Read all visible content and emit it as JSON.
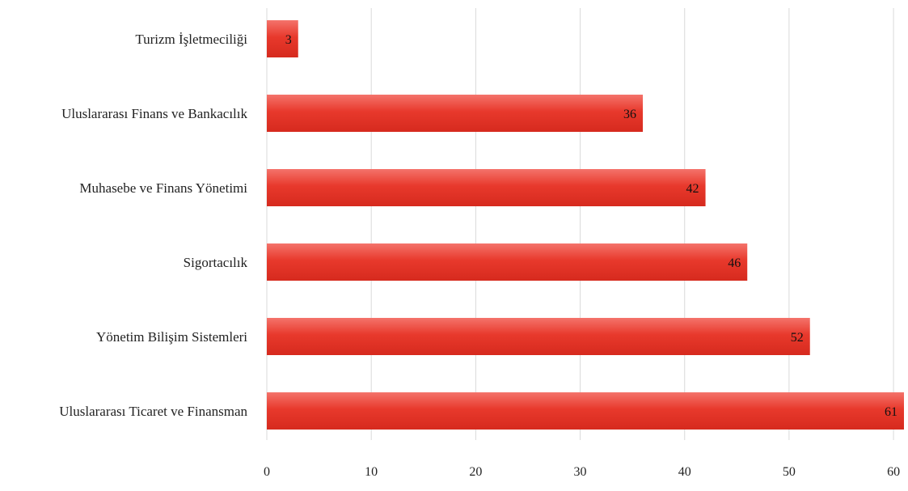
{
  "chart_data": {
    "type": "bar",
    "orientation": "horizontal",
    "categories": [
      "Turizm İşletmeciliği",
      "Uluslararası Finans ve Bankacılık",
      "Muhasebe ve Finans Yönetimi",
      "Sigortacılık",
      "Yönetim Bilişim Sistemleri",
      "Uluslararası Ticaret ve Finansman"
    ],
    "values": [
      3,
      36,
      42,
      46,
      52,
      61
    ],
    "xlim": [
      0,
      61
    ],
    "xticks": [
      0,
      10,
      20,
      30,
      40,
      50,
      60
    ],
    "title": "",
    "xlabel": "",
    "ylabel": "",
    "grid": "vertical",
    "legend": "none",
    "data_labels": true,
    "bar_color": "#e8392c",
    "bar_color_light": "#f4736b",
    "bar_color_dark": "#d62a1e"
  }
}
